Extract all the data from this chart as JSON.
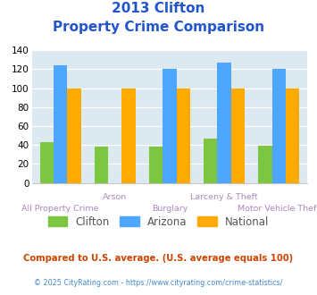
{
  "title_line1": "2013 Clifton",
  "title_line2": "Property Crime Comparison",
  "group_labels_top": [
    "",
    "Arson",
    "",
    "Larceny & Theft",
    ""
  ],
  "group_labels_bottom": [
    "All Property Crime",
    "",
    "Burglary",
    "",
    "Motor Vehicle Theft"
  ],
  "clifton": [
    43,
    38,
    38,
    47,
    39
  ],
  "arizona": [
    124,
    0,
    120,
    127,
    120
  ],
  "national": [
    100,
    100,
    100,
    100,
    100
  ],
  "color_clifton": "#7dc642",
  "color_arizona": "#4da6ff",
  "color_national": "#ffaa00",
  "ylim": [
    0,
    140
  ],
  "yticks": [
    0,
    20,
    40,
    60,
    80,
    100,
    120,
    140
  ],
  "title_color": "#2255cc",
  "title_fontsize": 11,
  "bg_color": "#dce9f0",
  "label_color": "#aa88bb",
  "footer1": "Compared to U.S. average. (U.S. average equals 100)",
  "footer2": "© 2025 CityRating.com - https://www.cityrating.com/crime-statistics/",
  "footer1_color": "#cc4400",
  "footer2_color": "#4488cc",
  "legend_color": "#555555"
}
